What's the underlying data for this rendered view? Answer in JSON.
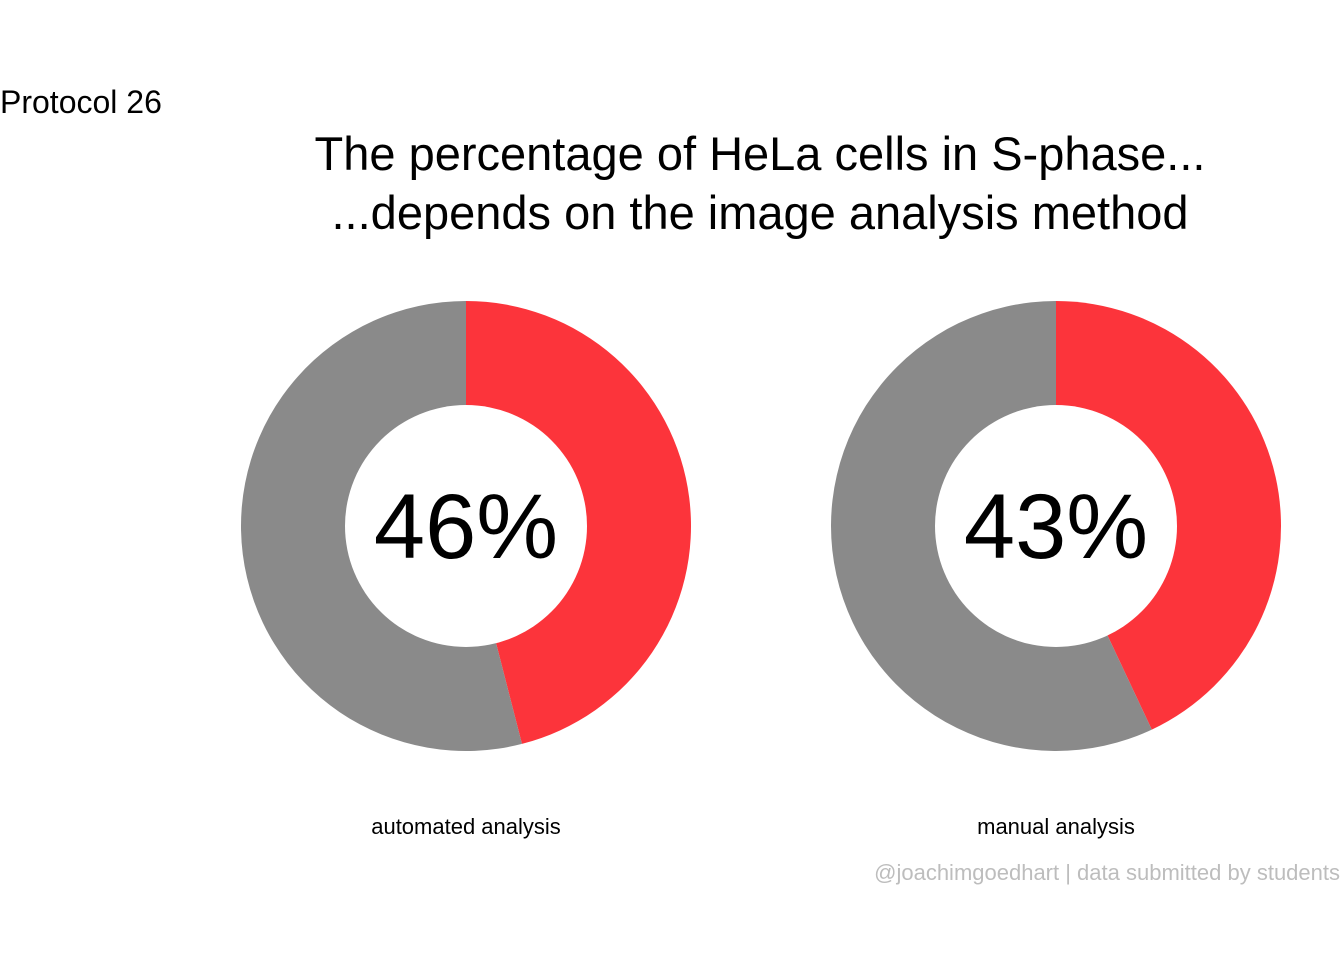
{
  "header": {
    "protocol_label": "Protocol 26",
    "title_line1": "The percentage of HeLa cells in S-phase...",
    "title_line2": "...depends on the image analysis method"
  },
  "caption": "@joachimgoedhart | data submitted by students",
  "colors": {
    "s_phase": "#fc343b",
    "other": "#8a8a8a",
    "hole": "#ffffff"
  },
  "chart_data": [
    {
      "type": "pie",
      "style": "donut",
      "label": "automated analysis",
      "center_text": "46%",
      "slices": [
        {
          "value": 46,
          "color": "#fc343b"
        },
        {
          "value": 54,
          "color": "#8a8a8a"
        }
      ]
    },
    {
      "type": "pie",
      "style": "donut",
      "label": "manual analysis",
      "center_text": "43%",
      "slices": [
        {
          "value": 43,
          "color": "#fc343b"
        },
        {
          "value": 57,
          "color": "#8a8a8a"
        }
      ]
    }
  ]
}
